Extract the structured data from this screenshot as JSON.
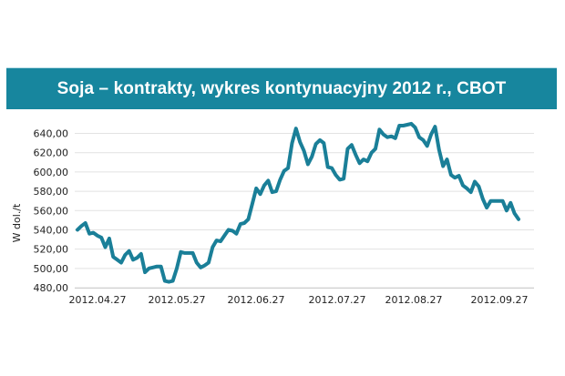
{
  "chart_data": {
    "type": "line",
    "title": "Soja – kontrakty, wykres kontynuacyjny 2012 r., CBOT",
    "xlabel": "",
    "ylabel": "W dol./t",
    "ylim": [
      480,
      650
    ],
    "yticks": [
      "480,00",
      "500,00",
      "520,00",
      "540,00",
      "560,00",
      "580,00",
      "600,00",
      "620,00",
      "640,00"
    ],
    "xticks": [
      "2012.04.27",
      "2012.05.27",
      "2012.06.27",
      "2012.07.27",
      "2012.08.27",
      "2012.09.27"
    ],
    "grid": true,
    "line_color": "#1a7f98",
    "series": [
      {
        "values": [
          540,
          544,
          547,
          536,
          537,
          534,
          532,
          522,
          531,
          512,
          509,
          506,
          514,
          518,
          509,
          511,
          515,
          496,
          500,
          501,
          502,
          502,
          487,
          486,
          487,
          500,
          517,
          516,
          516,
          516,
          506,
          501,
          503,
          506,
          522,
          529,
          528,
          534,
          540,
          539,
          536,
          546,
          547,
          551,
          567,
          583,
          577,
          586,
          591,
          579,
          580,
          592,
          601,
          604,
          630,
          645,
          631,
          622,
          608,
          616,
          629,
          633,
          630,
          605,
          604,
          597,
          592,
          593,
          624,
          628,
          618,
          609,
          613,
          611,
          620,
          624,
          644,
          639,
          636,
          637,
          635,
          648,
          648,
          649,
          650,
          646,
          636,
          633,
          627,
          639,
          647,
          623,
          606,
          613,
          597,
          594,
          596,
          586,
          583,
          579,
          590,
          585,
          572,
          563,
          570,
          570,
          570,
          570,
          560,
          568,
          557,
          551
        ]
      }
    ]
  }
}
